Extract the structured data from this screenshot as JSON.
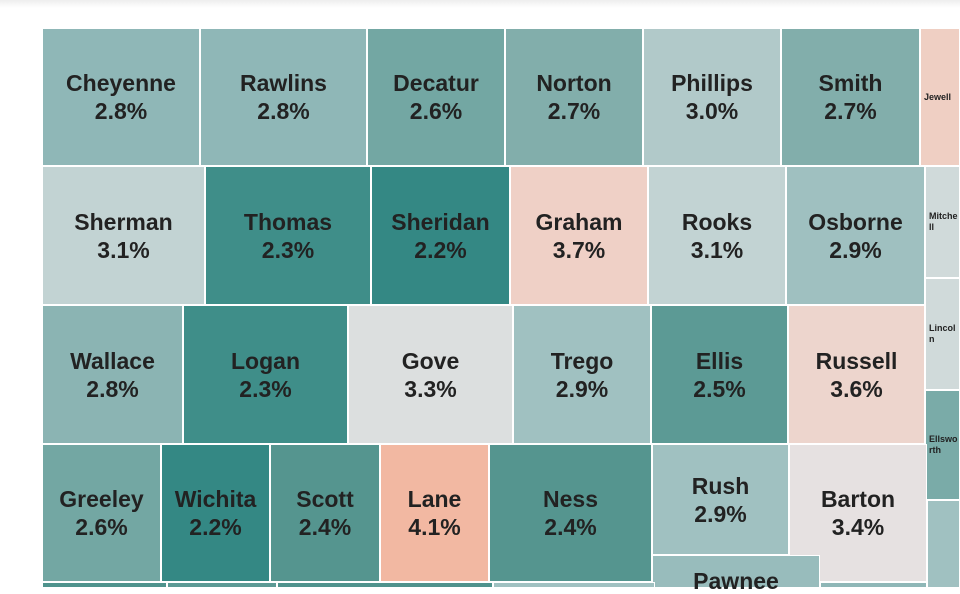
{
  "map": {
    "region": "Kansas counties",
    "counties": [
      {
        "name": "Cheyenne",
        "value": "2.8%",
        "color": "#8fb7b7"
      },
      {
        "name": "Rawlins",
        "value": "2.8%",
        "color": "#8fb7b7"
      },
      {
        "name": "Decatur",
        "value": "2.6%",
        "color": "#73a7a3"
      },
      {
        "name": "Norton",
        "value": "2.7%",
        "color": "#82aeab"
      },
      {
        "name": "Phillips",
        "value": "3.0%",
        "color": "#b1c9c9"
      },
      {
        "name": "Smith",
        "value": "2.7%",
        "color": "#82aeab"
      },
      {
        "name": "Jewell",
        "value": "",
        "color": "#efcfc3"
      },
      {
        "name": "Sherman",
        "value": "3.1%",
        "color": "#c2d3d3"
      },
      {
        "name": "Thomas",
        "value": "2.3%",
        "color": "#3f8e89"
      },
      {
        "name": "Sheridan",
        "value": "2.2%",
        "color": "#348884"
      },
      {
        "name": "Graham",
        "value": "3.7%",
        "color": "#efd0c6"
      },
      {
        "name": "Rooks",
        "value": "3.1%",
        "color": "#c2d3d3"
      },
      {
        "name": "Osborne",
        "value": "2.9%",
        "color": "#9fc0c0"
      },
      {
        "name": "Mitchell",
        "value": "",
        "color": "#d0dada"
      },
      {
        "name": "Lincoln",
        "value": "",
        "color": "#d0dada"
      },
      {
        "name": "Wallace",
        "value": "2.8%",
        "color": "#8bb4b3"
      },
      {
        "name": "Logan",
        "value": "2.3%",
        "color": "#3f8e89"
      },
      {
        "name": "Gove",
        "value": "3.3%",
        "color": "#dcdfdf"
      },
      {
        "name": "Trego",
        "value": "2.9%",
        "color": "#a0c1c1"
      },
      {
        "name": "Ellis",
        "value": "2.5%",
        "color": "#5c9a95"
      },
      {
        "name": "Russell",
        "value": "3.6%",
        "color": "#edd5cd"
      },
      {
        "name": "Ellsworth",
        "value": "",
        "color": "#7aaba8"
      },
      {
        "name": "Greeley",
        "value": "2.6%",
        "color": "#73a7a3"
      },
      {
        "name": "Wichita",
        "value": "2.2%",
        "color": "#348884"
      },
      {
        "name": "Scott",
        "value": "2.4%",
        "color": "#55958f"
      },
      {
        "name": "Lane",
        "value": "4.1%",
        "color": "#f2b8a2"
      },
      {
        "name": "Ness",
        "value": "2.4%",
        "color": "#55958f"
      },
      {
        "name": "Rush",
        "value": "2.9%",
        "color": "#a0c1c1"
      },
      {
        "name": "Barton",
        "value": "3.4%",
        "color": "#e6e1e1"
      },
      {
        "name": "Pawnee",
        "value": "",
        "color": "#98bcbc"
      },
      {
        "name": "",
        "value": "",
        "color": "#a0c1c1"
      },
      {
        "name": "",
        "value": "",
        "color": "#4f938d"
      },
      {
        "name": "",
        "value": "",
        "color": "#5c9a95"
      },
      {
        "name": "",
        "value": "",
        "color": "#4f938d"
      },
      {
        "name": "",
        "value": "",
        "color": "#a0c1c1"
      },
      {
        "name": "",
        "value": "",
        "color": "#8fb7b7"
      }
    ]
  }
}
